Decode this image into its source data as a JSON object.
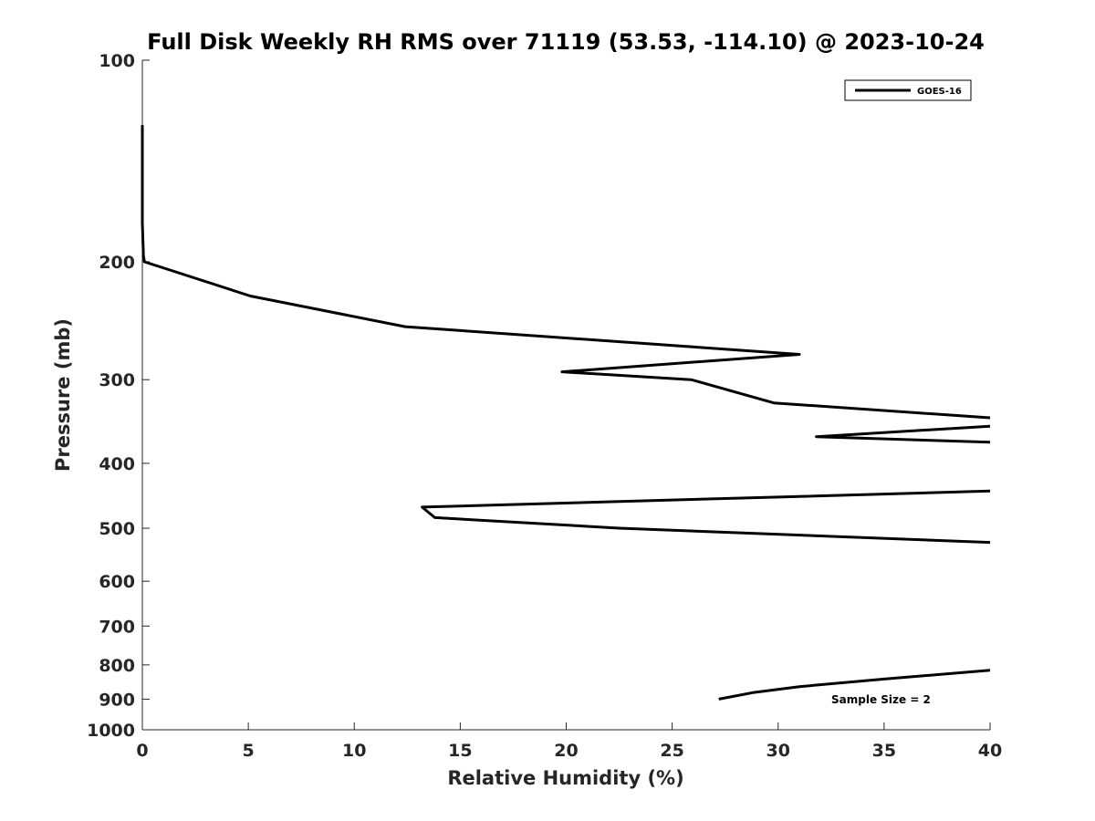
{
  "chart_data": {
    "type": "line",
    "title": "Full Disk Weekly RH RMS over 71119 (53.53, -114.10) @ 2023-10-24",
    "xlabel": "Relative Humidity (%)",
    "ylabel": "Pressure (mb)",
    "xlim": [
      0,
      40
    ],
    "ylim": [
      100,
      1000
    ],
    "y_scale": "log",
    "y_reversed": true,
    "x_ticks": [
      "0",
      "5",
      "10",
      "15",
      "20",
      "25",
      "30",
      "35",
      "40"
    ],
    "y_ticks": [
      "100",
      "200",
      "300",
      "400",
      "500",
      "600",
      "700",
      "800",
      "900",
      "1000"
    ],
    "grid": false,
    "legend": {
      "placement": "top-right",
      "entries": [
        "GOES-16"
      ]
    },
    "annotation": "Sample Size = 2",
    "series": [
      {
        "name": "GOES-16",
        "color": "#000000",
        "segments": [
          [
            [
              0.0,
              125
            ],
            [
              0.0,
              150
            ],
            [
              0.0,
              175
            ],
            [
              0.05,
              196
            ],
            [
              0.1,
              200
            ],
            [
              5.1,
              225
            ],
            [
              12.4,
              250
            ],
            [
              31.0,
              275
            ],
            [
              19.8,
              292
            ],
            [
              25.9,
              300
            ],
            [
              29.8,
              325
            ],
            [
              40,
              342
            ]
          ],
          [
            [
              40,
              352
            ],
            [
              31.8,
              365
            ],
            [
              40,
              372
            ]
          ],
          [
            [
              40,
              440
            ],
            [
              13.2,
              465
            ],
            [
              13.8,
              482
            ],
            [
              22.5,
              500
            ],
            [
              40,
              525
            ]
          ],
          [
            [
              40,
              815
            ],
            [
              35.0,
              840
            ],
            [
              31.0,
              862
            ],
            [
              28.8,
              880
            ],
            [
              27.2,
              900
            ]
          ]
        ]
      }
    ]
  }
}
